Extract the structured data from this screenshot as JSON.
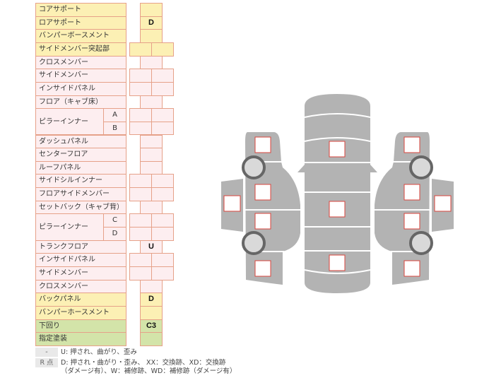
{
  "table": {
    "rows": [
      {
        "label": "コアサポート",
        "layout": "single",
        "color": "yellow",
        "values": [
          ""
        ]
      },
      {
        "label": "ロアサポート",
        "layout": "single",
        "color": "yellow",
        "values": [
          "D"
        ]
      },
      {
        "label": "バンパーボースメント",
        "layout": "single",
        "color": "yellow",
        "values": [
          ""
        ]
      },
      {
        "label": "サイドメンバー突起部",
        "layout": "double",
        "color": "yellow",
        "values": [
          "",
          ""
        ]
      },
      {
        "label": "クロスメンバー",
        "layout": "single",
        "color": "pink",
        "values": [
          ""
        ]
      },
      {
        "label": "サイドメンバー",
        "layout": "double",
        "color": "pink",
        "values": [
          "",
          ""
        ]
      },
      {
        "label": "インサイドパネル",
        "layout": "double",
        "color": "pink",
        "values": [
          "",
          ""
        ]
      },
      {
        "label": "フロア（キャブ床）",
        "layout": "single",
        "color": "pink",
        "values": [
          ""
        ]
      },
      {
        "label": "ピラーインナー",
        "layout": "double",
        "color": "pink",
        "subs": [
          {
            "label": "A",
            "values": [
              "",
              ""
            ]
          },
          {
            "label": "B",
            "values": [
              "",
              ""
            ]
          }
        ]
      },
      {
        "label": "ダッシュパネル",
        "layout": "single",
        "color": "pink",
        "values": [
          ""
        ]
      },
      {
        "label": "センターフロア",
        "layout": "single",
        "color": "pink",
        "values": [
          ""
        ]
      },
      {
        "label": "ルーフパネル",
        "layout": "single",
        "color": "pink",
        "values": [
          ""
        ]
      },
      {
        "label": "サイドシルインナー",
        "layout": "double",
        "color": "pink",
        "values": [
          "",
          ""
        ]
      },
      {
        "label": "フロアサイドメンバー",
        "layout": "double",
        "color": "pink",
        "values": [
          "",
          ""
        ]
      },
      {
        "label": "セットバック（キャブ背）",
        "layout": "single",
        "color": "pink",
        "values": [
          ""
        ]
      },
      {
        "label": "ピラーインナー",
        "layout": "double",
        "color": "pink",
        "subs": [
          {
            "label": "C",
            "values": [
              "",
              ""
            ]
          },
          {
            "label": "D",
            "values": [
              "",
              ""
            ]
          }
        ]
      },
      {
        "label": "トランクフロア",
        "layout": "single",
        "color": "pink",
        "values": [
          "U"
        ]
      },
      {
        "label": "インサイドパネル",
        "layout": "double",
        "color": "pink",
        "values": [
          "",
          ""
        ]
      },
      {
        "label": "サイドメンバー",
        "layout": "double",
        "color": "pink",
        "values": [
          "",
          ""
        ]
      },
      {
        "label": "クロスメンバー",
        "layout": "single",
        "color": "pink",
        "values": [
          ""
        ]
      },
      {
        "label": "バックパネル",
        "layout": "single",
        "color": "yellow",
        "values": [
          "D"
        ]
      },
      {
        "label": "バンパーホースメント",
        "layout": "single",
        "color": "yellow",
        "values": [
          ""
        ]
      },
      {
        "label": "下回り",
        "layout": "single",
        "color": "green",
        "values": [
          "C3"
        ]
      },
      {
        "label": "指定塗装",
        "layout": "single",
        "color": "green",
        "values": [
          ""
        ]
      }
    ]
  },
  "legend": [
    {
      "key": "-",
      "text": "U: 押され、曲がり、歪み"
    },
    {
      "key": "R 点",
      "text": "D: 押され・曲がり・歪み、 XX：交換跡、XD：交換跡",
      "text2": "（ダメージ有）、W：補修跡、WD：補修跡（ダメージ有）"
    }
  ],
  "colors": {
    "yellow": "#fcf0b4",
    "pink": "#fdeef0",
    "green": "#d3e4a9",
    "border": "#e6a189",
    "body": "#b3b3b3",
    "marker": "#d9463e"
  }
}
